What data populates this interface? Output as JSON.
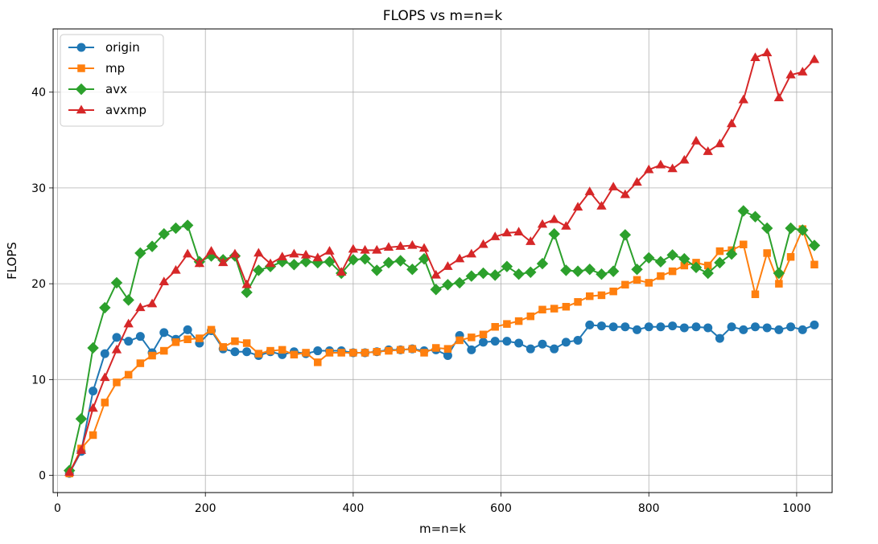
{
  "chart_data": {
    "type": "line",
    "title": "FLOPS vs m=n=k",
    "xlabel": "m=n=k",
    "ylabel": "FLOPS",
    "xlim": [
      -6,
      1048
    ],
    "ylim": [
      -1.8,
      46.6
    ],
    "xticks": [
      0,
      200,
      400,
      600,
      800,
      1000
    ],
    "yticks": [
      0,
      10,
      20,
      30,
      40
    ],
    "grid": true,
    "legend_position": "top-left",
    "x": [
      16,
      32,
      48,
      64,
      80,
      96,
      112,
      128,
      144,
      160,
      176,
      192,
      208,
      224,
      240,
      256,
      272,
      288,
      304,
      320,
      336,
      352,
      368,
      384,
      400,
      416,
      432,
      448,
      464,
      480,
      496,
      512,
      528,
      544,
      560,
      576,
      592,
      608,
      624,
      640,
      656,
      672,
      688,
      704,
      720,
      736,
      752,
      768,
      784,
      800,
      816,
      832,
      848,
      864,
      880,
      896,
      912,
      928,
      944,
      960,
      976,
      992,
      1008,
      1024
    ],
    "series": [
      {
        "name": "origin",
        "color": "#1f77b4",
        "marker": "circle",
        "values": [
          0.2,
          2.5,
          8.8,
          12.7,
          14.4,
          14.0,
          14.5,
          12.8,
          14.9,
          14.2,
          15.2,
          13.8,
          15.1,
          13.2,
          12.9,
          12.9,
          12.5,
          12.9,
          12.6,
          12.9,
          12.7,
          13.0,
          13.0,
          13.0,
          12.8,
          12.8,
          12.9,
          13.1,
          13.1,
          13.2,
          13.0,
          13.1,
          12.5,
          14.6,
          13.1,
          13.9,
          14.0,
          14.0,
          13.8,
          13.2,
          13.7,
          13.2,
          13.9,
          14.1,
          15.7,
          15.6,
          15.5,
          15.5,
          15.2,
          15.5,
          15.5,
          15.6,
          15.4,
          15.5,
          15.4,
          14.3,
          15.5,
          15.2,
          15.5,
          15.4,
          15.2,
          15.5,
          15.2,
          15.7
        ]
      },
      {
        "name": "mp",
        "color": "#ff7f0e",
        "marker": "square",
        "values": [
          0.2,
          2.8,
          4.2,
          7.6,
          9.7,
          10.5,
          11.7,
          12.5,
          13.0,
          13.9,
          14.2,
          14.3,
          15.2,
          13.4,
          14.0,
          13.8,
          12.7,
          13.0,
          13.1,
          12.6,
          12.8,
          11.8,
          12.8,
          12.8,
          12.8,
          12.8,
          12.9,
          13.0,
          13.1,
          13.2,
          12.8,
          13.3,
          13.2,
          14.1,
          14.4,
          14.7,
          15.5,
          15.8,
          16.1,
          16.6,
          17.3,
          17.4,
          17.6,
          18.1,
          18.7,
          18.8,
          19.2,
          19.9,
          20.4,
          20.1,
          20.8,
          21.3,
          21.9,
          22.2,
          21.9,
          23.4,
          23.5,
          24.1,
          18.9,
          23.2,
          20.0,
          22.8,
          25.7,
          22.0
        ]
      },
      {
        "name": "avx",
        "color": "#2ca02c",
        "marker": "diamond",
        "values": [
          0.5,
          5.9,
          13.3,
          17.5,
          20.1,
          18.3,
          23.2,
          23.9,
          25.2,
          25.8,
          26.1,
          22.3,
          22.9,
          22.5,
          22.9,
          19.1,
          21.4,
          21.8,
          22.3,
          22.0,
          22.3,
          22.2,
          22.3,
          21.1,
          22.5,
          22.6,
          21.4,
          22.2,
          22.4,
          21.5,
          22.6,
          19.4,
          19.9,
          20.1,
          20.8,
          21.1,
          20.9,
          21.8,
          21.0,
          21.2,
          22.1,
          25.2,
          21.4,
          21.3,
          21.5,
          21.0,
          21.3,
          25.1,
          21.5,
          22.7,
          22.3,
          23.0,
          22.6,
          21.7,
          21.1,
          22.2,
          23.1,
          27.6,
          27.0,
          25.8,
          21.1,
          25.8,
          25.6,
          24.0
        ]
      },
      {
        "name": "avxmp",
        "color": "#d62728",
        "marker": "triangle",
        "values": [
          0.3,
          2.6,
          7.0,
          10.2,
          13.1,
          15.8,
          17.5,
          17.9,
          20.2,
          21.4,
          23.1,
          22.1,
          23.4,
          22.2,
          23.1,
          19.9,
          23.2,
          22.1,
          22.8,
          23.1,
          23.0,
          22.7,
          23.4,
          21.2,
          23.6,
          23.5,
          23.5,
          23.8,
          23.9,
          24.0,
          23.7,
          20.9,
          21.8,
          22.6,
          23.1,
          24.1,
          24.9,
          25.3,
          25.4,
          24.4,
          26.2,
          26.7,
          26.0,
          28.0,
          29.6,
          28.1,
          30.1,
          29.3,
          30.6,
          31.9,
          32.4,
          32.0,
          32.9,
          34.9,
          33.8,
          34.6,
          36.7,
          39.2,
          43.6,
          44.1,
          39.4,
          41.8,
          42.1,
          43.4
        ]
      }
    ]
  }
}
